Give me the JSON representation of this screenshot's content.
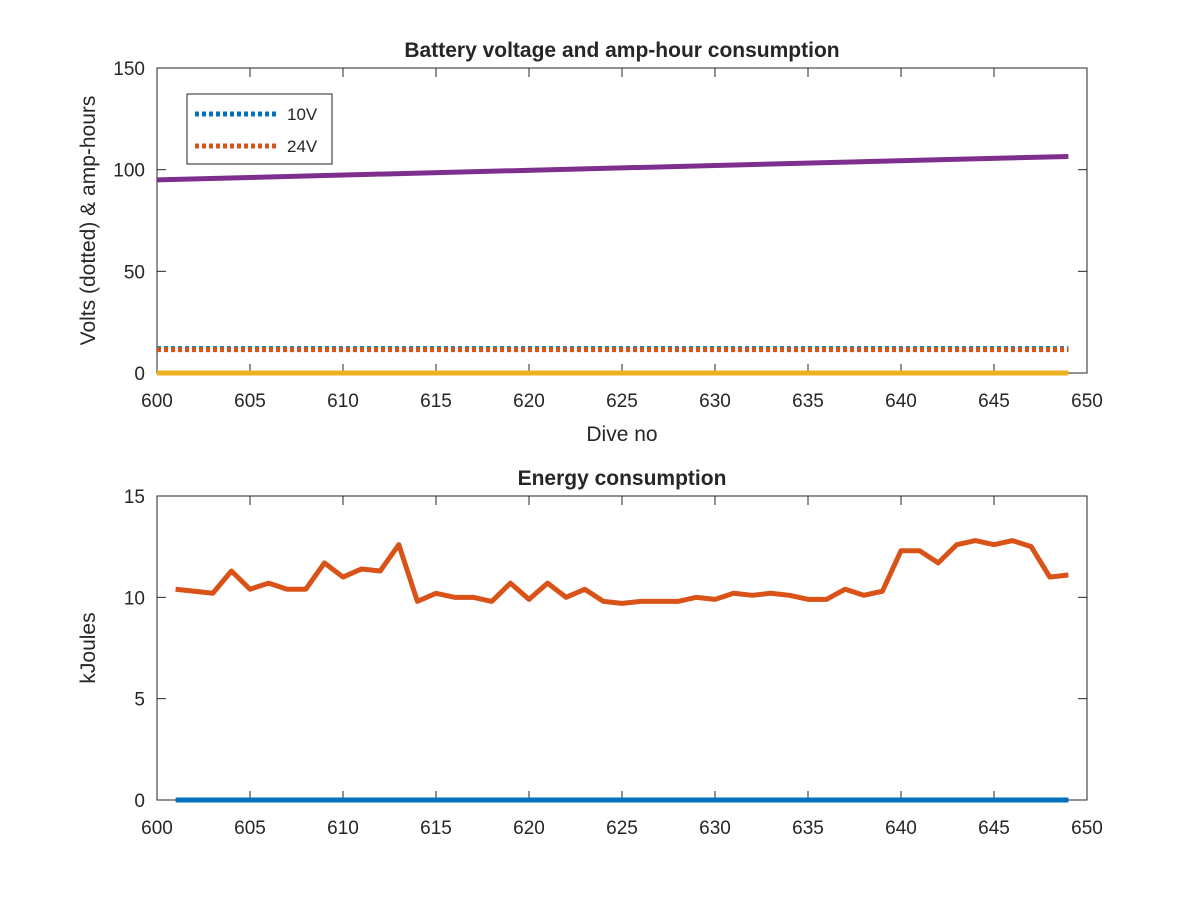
{
  "chart_data": [
    {
      "type": "line",
      "title": "Battery voltage and amp-hour consumption",
      "xlabel": "Dive no",
      "ylabel": "Volts (dotted) & amp-hours",
      "xlim": [
        600,
        650
      ],
      "ylim": [
        0,
        150
      ],
      "xticks": [
        600,
        605,
        610,
        615,
        620,
        625,
        630,
        635,
        640,
        645,
        650
      ],
      "yticks": [
        0,
        50,
        100,
        150
      ],
      "grid": false,
      "legend": {
        "placement": "top-left",
        "entries": [
          "10V",
          "24V"
        ]
      },
      "series": [
        {
          "name": "10V",
          "style": "dotted",
          "color": "#0072BD",
          "x": [
            600,
            649
          ],
          "y": [
            12,
            12
          ]
        },
        {
          "name": "24V",
          "style": "dotted",
          "color": "#D95319",
          "x": [
            600,
            649
          ],
          "y": [
            11.5,
            11.5
          ]
        },
        {
          "style": "solid",
          "color": "#7E2F8E",
          "x": [
            600,
            649
          ],
          "y": [
            95,
            106.5
          ]
        },
        {
          "style": "solid",
          "color": "#EDB120",
          "x": [
            600,
            649
          ],
          "y": [
            0,
            0
          ]
        }
      ]
    },
    {
      "type": "line",
      "title": "Energy consumption",
      "xlabel": "",
      "ylabel": "kJoules",
      "xlim": [
        600,
        650
      ],
      "ylim": [
        0,
        15
      ],
      "xticks": [
        600,
        605,
        610,
        615,
        620,
        625,
        630,
        635,
        640,
        645,
        650
      ],
      "yticks": [
        0,
        5,
        10,
        15
      ],
      "grid": false,
      "series": [
        {
          "style": "solid",
          "color": "#D95319",
          "x": [
            601,
            602,
            603,
            604,
            605,
            606,
            607,
            608,
            609,
            610,
            611,
            612,
            613,
            614,
            615,
            616,
            617,
            618,
            619,
            620,
            621,
            622,
            623,
            624,
            625,
            626,
            627,
            628,
            629,
            630,
            631,
            632,
            633,
            634,
            635,
            636,
            637,
            638,
            639,
            640,
            641,
            642,
            643,
            644,
            645,
            646,
            647,
            648,
            649
          ],
          "y": [
            10.4,
            10.3,
            10.2,
            11.3,
            10.4,
            10.7,
            10.4,
            10.4,
            11.7,
            11.0,
            11.4,
            11.3,
            12.6,
            9.8,
            10.2,
            10.0,
            10.0,
            9.8,
            10.7,
            9.9,
            10.7,
            10.0,
            10.4,
            9.8,
            9.7,
            9.8,
            9.8,
            9.8,
            10.0,
            9.9,
            10.2,
            10.1,
            10.2,
            10.1,
            9.9,
            9.9,
            10.4,
            10.1,
            10.3,
            12.3,
            12.3,
            11.7,
            12.6,
            12.8,
            12.6,
            12.8,
            12.5,
            11.0,
            11.1
          ]
        },
        {
          "style": "solid",
          "color": "#0072BD",
          "x": [
            601,
            649
          ],
          "y": [
            0,
            0
          ]
        }
      ]
    }
  ]
}
